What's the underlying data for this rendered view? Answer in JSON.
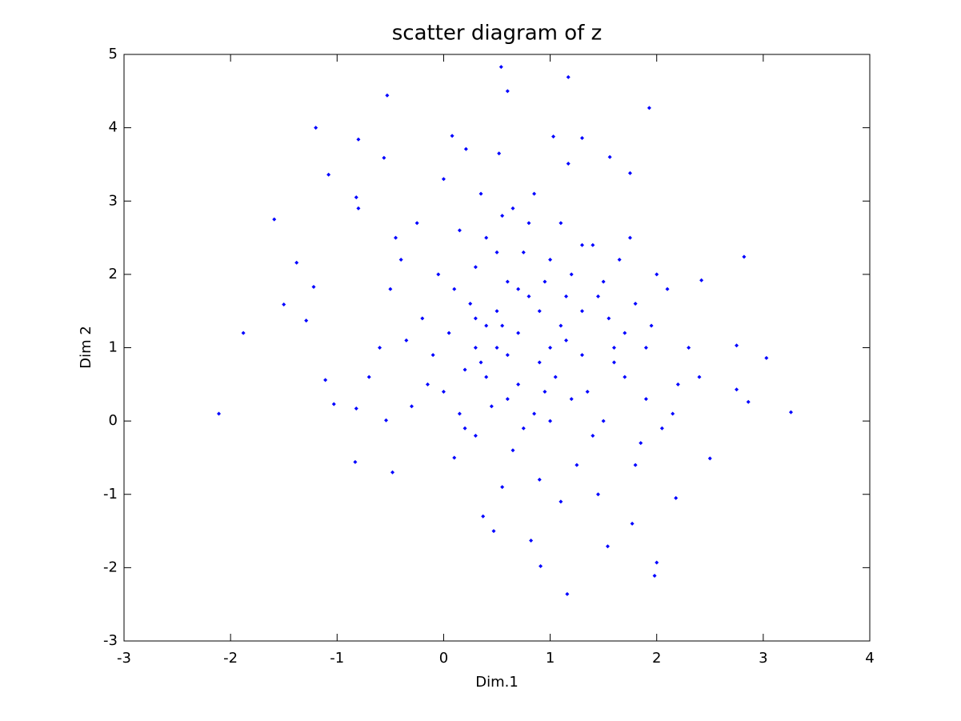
{
  "chart_data": {
    "type": "scatter",
    "title": "scatter diagram of z",
    "x_label": "Dim.1",
    "y_label": "Dim 2",
    "color": "#0000ff",
    "xlim": [
      -3,
      4
    ],
    "xticks": [
      -3,
      -2,
      -1,
      0,
      1,
      2,
      3,
      4
    ],
    "ylim": [
      -3,
      5
    ],
    "yticks": [
      -3,
      -2,
      -1,
      0,
      1,
      2,
      3,
      4,
      5
    ],
    "x": [
      -2.11,
      -1.88,
      -1.59,
      -1.38,
      -1.2,
      -1.08,
      -0.53,
      0.54,
      0.6,
      1.17,
      1.93,
      3.26,
      3.03,
      2.82,
      1.16,
      1.98,
      2.0,
      0.91,
      -0.83,
      -0.48,
      2.5,
      2.18,
      1.77,
      1.54,
      0.82,
      0.47,
      0.37,
      2.86,
      2.75,
      2.42,
      2.75,
      -1.5,
      -1.29,
      -1.22,
      -0.82,
      -0.8,
      -0.56,
      0.08,
      0.21,
      0.52,
      1.03,
      1.3,
      1.56,
      1.75,
      1.17,
      -1.11,
      -1.03,
      -0.54,
      -0.82,
      0.1,
      0.3,
      0.5,
      0.7,
      0.9,
      1.1,
      1.3,
      1.5,
      1.7,
      1.9,
      -0.2,
      -0.4,
      0.0,
      0.2,
      0.4,
      0.6,
      0.8,
      1.0,
      1.2,
      1.4,
      1.6,
      1.8,
      2.0,
      2.2,
      -0.6,
      -0.8,
      -0.3,
      0.15,
      0.35,
      0.55,
      0.75,
      0.95,
      1.15,
      1.35,
      1.55,
      1.75,
      1.95,
      2.15,
      2.3,
      -0.1,
      0.05,
      0.25,
      0.45,
      0.65,
      0.85,
      1.05,
      1.25,
      1.45,
      1.65,
      1.85,
      -0.5,
      -0.7,
      -0.25,
      0.0,
      0.3,
      0.5,
      0.7,
      0.9,
      1.1,
      1.3,
      1.5,
      1.7,
      1.9,
      2.1,
      0.2,
      0.4,
      0.6,
      0.8,
      1.0,
      1.2,
      1.4,
      1.6,
      0.1,
      0.3,
      0.6,
      0.9,
      1.0,
      0.7,
      0.5,
      0.3,
      -0.05,
      -0.35,
      -0.15,
      0.55,
      0.75,
      1.45,
      1.8,
      2.05,
      2.4,
      0.85,
      1.1,
      0.4,
      0.65,
      -0.45,
      0.15,
      1.3,
      0.95,
      1.15,
      0.35,
      0.55
    ],
    "values": [
      0.1,
      1.2,
      2.75,
      2.16,
      4.0,
      3.36,
      4.44,
      4.83,
      4.5,
      4.69,
      4.27,
      0.12,
      0.86,
      2.24,
      -2.36,
      -2.11,
      -1.93,
      -1.98,
      -0.56,
      -0.7,
      -0.51,
      -1.05,
      -1.4,
      -1.71,
      -1.63,
      -1.5,
      -1.3,
      0.26,
      0.43,
      1.92,
      1.03,
      1.59,
      1.37,
      1.83,
      3.05,
      3.84,
      3.59,
      3.89,
      3.71,
      3.65,
      3.88,
      3.86,
      3.6,
      3.38,
      3.51,
      0.56,
      0.23,
      0.01,
      0.17,
      1.8,
      2.1,
      1.5,
      1.2,
      0.8,
      1.3,
      2.4,
      1.9,
      0.6,
      1.0,
      1.4,
      2.2,
      0.4,
      -0.1,
      0.6,
      0.9,
      1.7,
      2.2,
      0.3,
      -0.2,
      0.8,
      1.6,
      2.0,
      0.5,
      1.0,
      2.9,
      0.2,
      2.6,
      3.1,
      2.8,
      2.3,
      1.9,
      1.1,
      0.4,
      1.4,
      2.5,
      1.3,
      0.1,
      1.0,
      0.9,
      1.2,
      1.6,
      0.2,
      -0.4,
      0.1,
      0.6,
      -0.6,
      1.7,
      2.2,
      -0.3,
      1.8,
      0.6,
      2.7,
      3.3,
      1.0,
      2.3,
      0.5,
      -0.8,
      -1.1,
      1.5,
      0.0,
      1.2,
      0.3,
      1.8,
      0.7,
      1.3,
      1.9,
      2.7,
      0.0,
      2.0,
      2.4,
      1.0,
      -0.5,
      -0.2,
      0.3,
      1.5,
      1.0,
      1.8,
      1.0,
      1.4,
      2.0,
      1.1,
      0.5,
      -0.9,
      -0.1,
      -1.0,
      -0.6,
      -0.1,
      0.6,
      3.1,
      2.7,
      2.5,
      2.9,
      2.5,
      0.1,
      0.9,
      0.4,
      1.7,
      0.8,
      1.3
    ]
  }
}
